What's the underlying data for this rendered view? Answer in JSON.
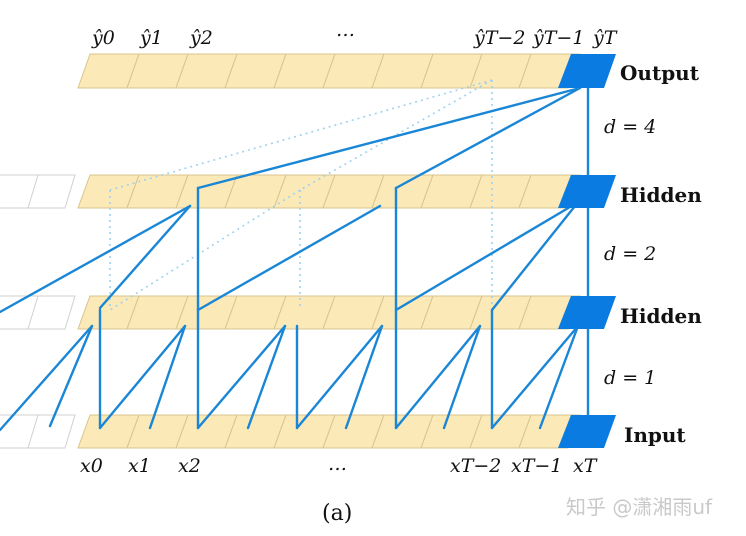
{
  "layers": {
    "output": "Output",
    "hidden_top": "Hidden",
    "hidden_mid": "Hidden",
    "input": "Input"
  },
  "dilations": {
    "d4": "d = 4",
    "d2": "d = 2",
    "d1": "d = 1"
  },
  "top_labels": [
    "ŷ0",
    "ŷ1",
    "ŷ2",
    "…",
    "ŷT−2",
    "ŷT−1",
    "ŷT"
  ],
  "bottom_labels": [
    "x0",
    "x1",
    "x2",
    "…",
    "xT−2",
    "xT−1",
    "xT"
  ],
  "caption": "(a)",
  "watermark": "知乎 @潇湘雨uf",
  "colors": {
    "cell_fill": "#fbe9b7",
    "cell_stroke": "#d9c48c",
    "highlight": "#0a7be0",
    "connection": "#1a86d6",
    "ghost": "#cfcfcf"
  }
}
